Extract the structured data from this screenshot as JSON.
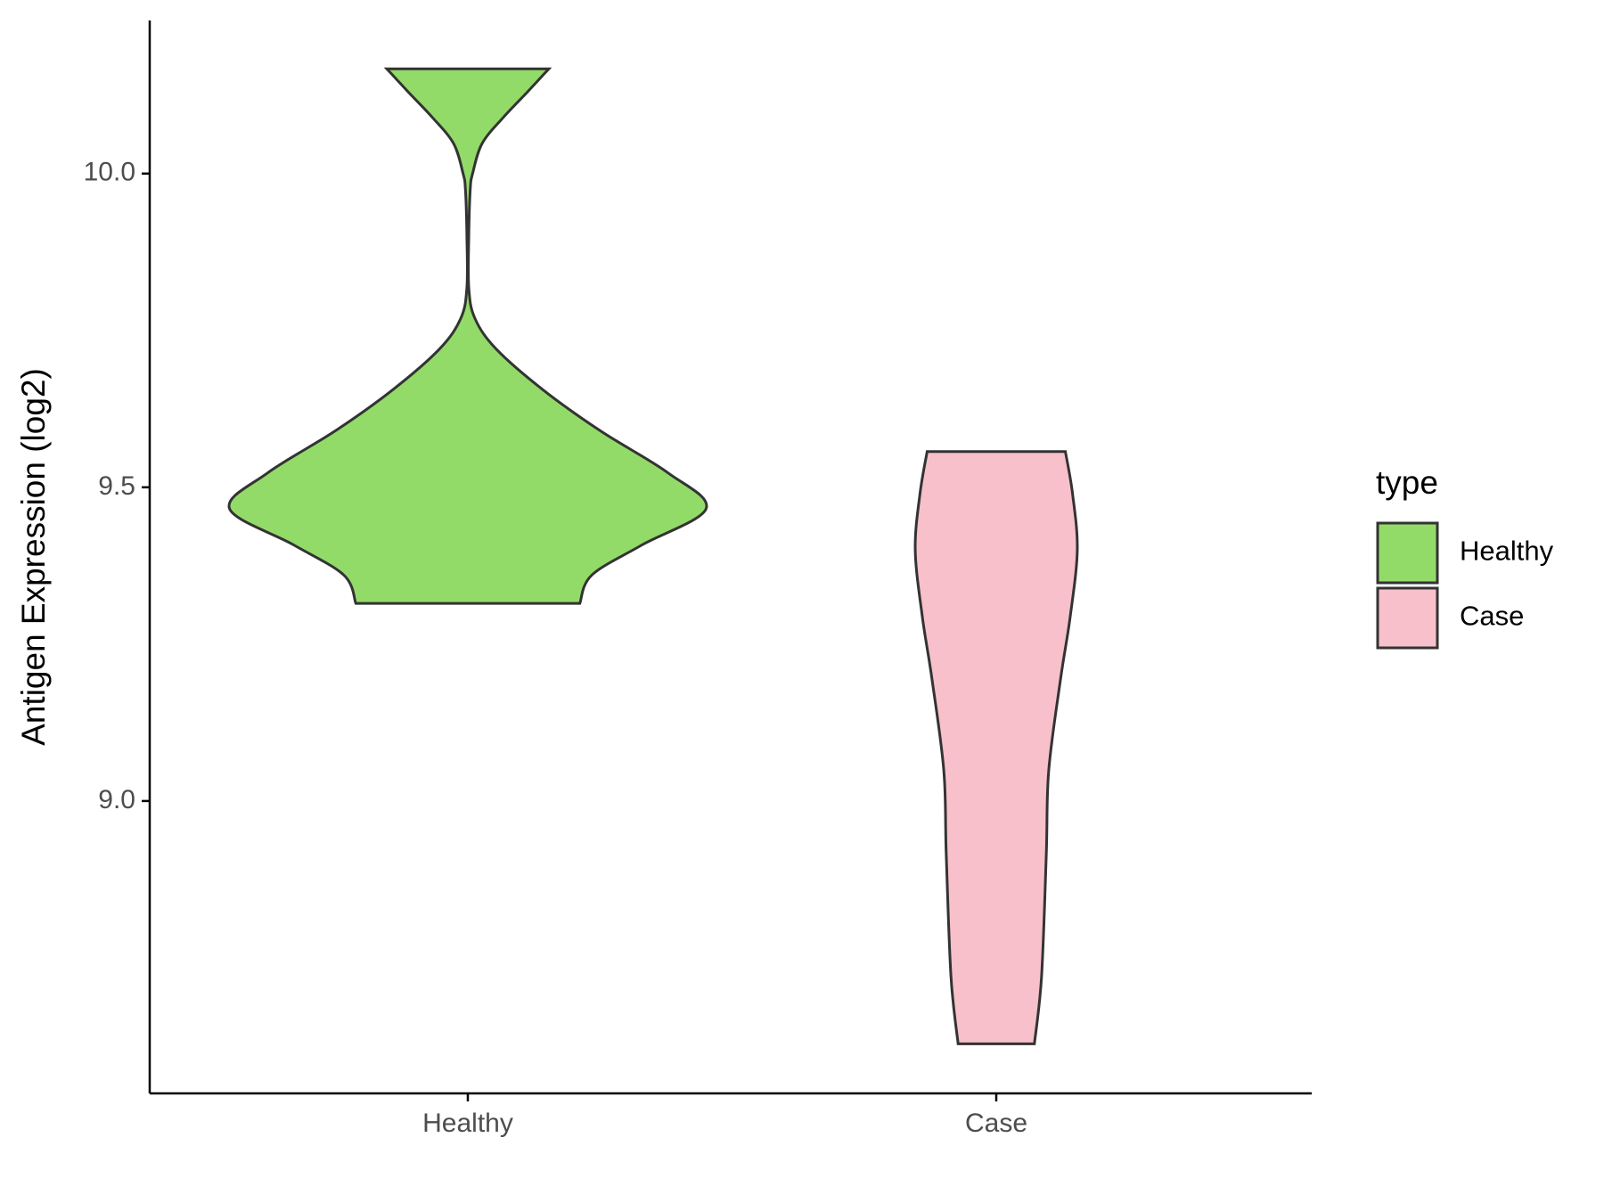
{
  "chart_data": {
    "type": "violin",
    "ylabel": "Antigen Expression (log2)",
    "categories": [
      "Healthy",
      "Case"
    ],
    "legend_title": "type",
    "legend": "right",
    "ylim": [
      8.534,
      10.244
    ],
    "yticks": [
      {
        "value": 9.0,
        "label": "9.0"
      },
      9.5,
      {
        "value": 10.0,
        "label": "10.0"
      }
    ],
    "series": [
      {
        "name": "Healthy",
        "color": "#93DB69",
        "y": [
          10.167,
          10.13,
          10.09,
          10.048,
          10.0,
          9.974,
          9.9,
          9.818,
          9.769,
          9.72,
          9.654,
          9.589,
          9.523,
          9.466,
          9.408,
          9.36,
          9.315
        ],
        "density": [
          0.34,
          0.25,
          0.15,
          0.06,
          0.02,
          0.01,
          0.004,
          0.004,
          0.03,
          0.12,
          0.32,
          0.56,
          0.84,
          1,
          0.73,
          0.52,
          0.47
        ]
      },
      {
        "name": "Case",
        "color": "#F7C0CB",
        "y": [
          9.557,
          9.49,
          9.4,
          9.293,
          9.195,
          9.048,
          8.916,
          8.72,
          8.613
        ],
        "density": [
          0.29,
          0.32,
          0.34,
          0.31,
          0.27,
          0.22,
          0.21,
          0.19,
          0.16
        ]
      }
    ]
  }
}
